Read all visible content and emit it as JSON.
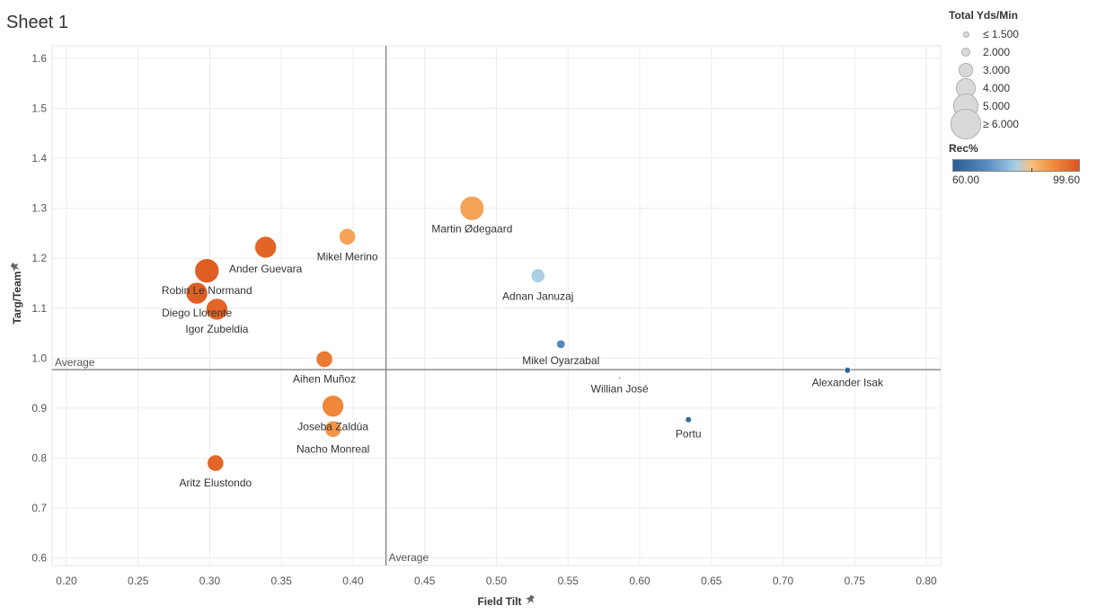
{
  "sheet": {
    "title": "Sheet 1"
  },
  "chart_data": {
    "type": "scatter",
    "xlabel": "Field Tilt",
    "ylabel": "Targ/Team",
    "xlim": [
      0.19,
      0.81
    ],
    "ylim": [
      0.585,
      1.625
    ],
    "x_ticks": [
      "0.20",
      "0.25",
      "0.30",
      "0.35",
      "0.40",
      "0.45",
      "0.50",
      "0.55",
      "0.60",
      "0.65",
      "0.70",
      "0.75",
      "0.80"
    ],
    "y_ticks": [
      "0.6",
      "0.7",
      "0.8",
      "0.9",
      "1.0",
      "1.1",
      "1.2",
      "1.3",
      "1.4",
      "1.5",
      "1.6"
    ],
    "grid": true,
    "reference_lines": {
      "x_average": {
        "value": 0.423,
        "label": "Average"
      },
      "y_average": {
        "value": 0.977,
        "label": "Average"
      }
    },
    "points": [
      {
        "name": "Martin Ødegaard",
        "x": 0.483,
        "y": 1.3,
        "yds_min": 5.0,
        "rec": 88
      },
      {
        "name": "Mikel Merino",
        "x": 0.396,
        "y": 1.243,
        "yds_min": 3.5,
        "rec": 88
      },
      {
        "name": "Ander Guevara",
        "x": 0.339,
        "y": 1.222,
        "yds_min": 4.5,
        "rec": 97
      },
      {
        "name": "Robin Le Normand",
        "x": 0.298,
        "y": 1.175,
        "yds_min": 5.0,
        "rec": 98
      },
      {
        "name": "Diego Llorente",
        "x": 0.291,
        "y": 1.13,
        "yds_min": 4.5,
        "rec": 98
      },
      {
        "name": "Igor Zubeldia",
        "x": 0.305,
        "y": 1.098,
        "yds_min": 4.5,
        "rec": 97
      },
      {
        "name": "Adnan Januzaj",
        "x": 0.529,
        "y": 1.165,
        "yds_min": 3.0,
        "rec": 76
      },
      {
        "name": "Mikel Oyarzabal",
        "x": 0.545,
        "y": 1.028,
        "yds_min": 2.0,
        "rec": 67
      },
      {
        "name": "Aihen Muñoz",
        "x": 0.38,
        "y": 0.998,
        "yds_min": 3.5,
        "rec": 94
      },
      {
        "name": "Willian José",
        "x": 0.586,
        "y": 0.96,
        "yds_min": 1.0,
        "rec": 64
      },
      {
        "name": "Alexander Isak",
        "x": 0.745,
        "y": 0.976,
        "yds_min": 1.5,
        "rec": 61
      },
      {
        "name": "Joseba Zaldúa",
        "x": 0.386,
        "y": 0.904,
        "yds_min": 4.5,
        "rec": 92
      },
      {
        "name": "Nacho Monreal",
        "x": 0.386,
        "y": 0.858,
        "yds_min": 3.5,
        "rec": 90
      },
      {
        "name": "Portu",
        "x": 0.634,
        "y": 0.877,
        "yds_min": 1.5,
        "rec": 62
      },
      {
        "name": "Aritz Elustondo",
        "x": 0.304,
        "y": 0.79,
        "yds_min": 3.5,
        "rec": 97
      }
    ],
    "size_legend": {
      "title": "Total Yds/Min",
      "items": [
        {
          "label": "≤ 1.500",
          "value": 1.5
        },
        {
          "label": "2.000",
          "value": 2.0
        },
        {
          "label": "3.000",
          "value": 3.0
        },
        {
          "label": "4.000",
          "value": 4.0
        },
        {
          "label": "5.000",
          "value": 5.0
        },
        {
          "label": "≥ 6.000",
          "value": 6.0
        }
      ]
    },
    "color_legend": {
      "title": "Rec%",
      "min_label": "60.00",
      "max_label": "99.60",
      "min": 60.0,
      "max": 99.6,
      "colors": [
        "#2a5d8f",
        "#5b8fc2",
        "#a9cfe6",
        "#f7c07c",
        "#f28a3a",
        "#d9531e"
      ]
    }
  }
}
